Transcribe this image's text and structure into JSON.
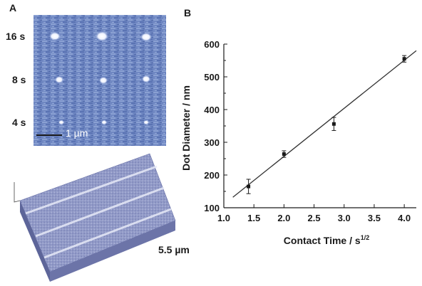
{
  "panels": {
    "a": "A",
    "b": "B"
  },
  "afm": {
    "row_labels": [
      "16 s",
      "8 s",
      "4 s"
    ],
    "scalebar_label": "1 µm",
    "topo_scale_label": "5.5 µm"
  },
  "chart_data": {
    "type": "scatter",
    "xlabel": "Contact Time / s",
    "xlabel_sup": "1/2",
    "ylabel": "Dot Diameter / nm",
    "xlim": [
      1.0,
      4.2
    ],
    "ylim": [
      100,
      600
    ],
    "xticks": [
      1.0,
      1.5,
      2.0,
      2.5,
      3.0,
      3.5,
      4.0
    ],
    "yticks": [
      100,
      200,
      300,
      400,
      500,
      600
    ],
    "xtick_labels": [
      "1.0",
      "1.5",
      "2.0",
      "2.5",
      "3.0",
      "3.5",
      "4.0"
    ],
    "ytick_labels": [
      "100",
      "200",
      "300",
      "400",
      "500",
      "600"
    ],
    "points": [
      {
        "x": 1.41,
        "y": 165,
        "err": 22
      },
      {
        "x": 2.0,
        "y": 264,
        "err": 10
      },
      {
        "x": 2.83,
        "y": 356,
        "err": 20
      },
      {
        "x": 4.0,
        "y": 555,
        "err": 10
      }
    ],
    "fit_line": {
      "x": [
        1.15,
        4.2
      ],
      "y": [
        132,
        580
      ]
    },
    "grid": false
  }
}
